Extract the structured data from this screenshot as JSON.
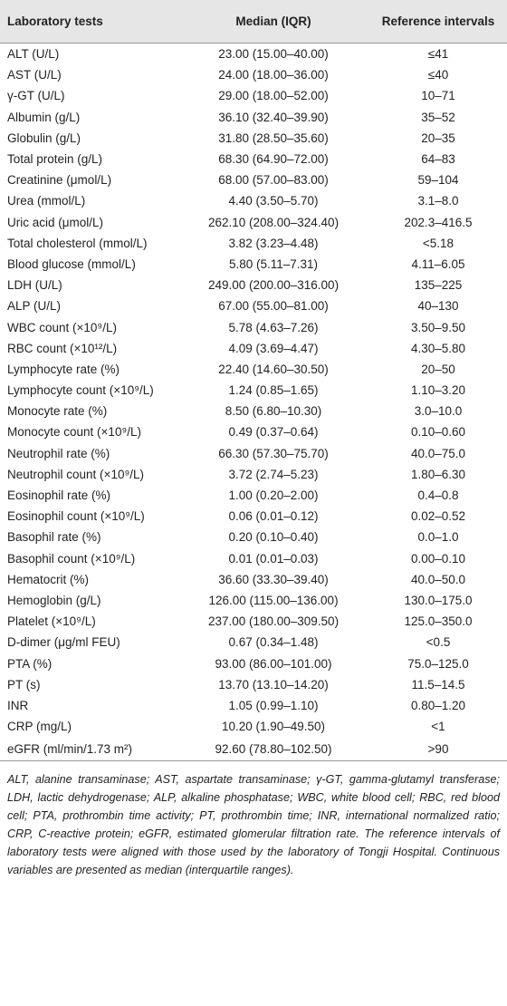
{
  "table": {
    "header": [
      "Laboratory tests",
      "Median (IQR)",
      "Reference intervals"
    ],
    "rows": [
      [
        "ALT (U/L)",
        "23.00 (15.00–40.00)",
        "≤41"
      ],
      [
        "AST (U/L)",
        "24.00 (18.00–36.00)",
        "≤40"
      ],
      [
        "γ-GT (U/L)",
        "29.00 (18.00–52.00)",
        "10–71"
      ],
      [
        "Albumin (g/L)",
        "36.10 (32.40–39.90)",
        "35–52"
      ],
      [
        "Globulin (g/L)",
        "31.80 (28.50–35.60)",
        "20–35"
      ],
      [
        "Total protein (g/L)",
        "68.30 (64.90–72.00)",
        "64–83"
      ],
      [
        "Creatinine (μmol/L)",
        "68.00 (57.00–83.00)",
        "59–104"
      ],
      [
        "Urea (mmol/L)",
        "4.40 (3.50–5.70)",
        "3.1–8.0"
      ],
      [
        "Uric acid (μmol/L)",
        "262.10 (208.00–324.40)",
        "202.3–416.5"
      ],
      [
        "Total cholesterol (mmol/L)",
        "3.82 (3.23–4.48)",
        "<5.18"
      ],
      [
        "Blood glucose (mmol/L)",
        "5.80 (5.11–7.31)",
        "4.11–6.05"
      ],
      [
        "LDH (U/L)",
        "249.00 (200.00–316.00)",
        "135–225"
      ],
      [
        "ALP (U/L)",
        "67.00 (55.00–81.00)",
        "40–130"
      ],
      [
        "WBC count (×10⁹/L)",
        "5.78 (4.63–7.26)",
        "3.50–9.50"
      ],
      [
        "RBC count (×10¹²/L)",
        "4.09 (3.69–4.47)",
        "4.30–5.80"
      ],
      [
        "Lymphocyte rate (%)",
        "22.40 (14.60–30.50)",
        "20–50"
      ],
      [
        "Lymphocyte count (×10⁹/L)",
        "1.24 (0.85–1.65)",
        "1.10–3.20"
      ],
      [
        "Monocyte rate (%)",
        "8.50 (6.80–10.30)",
        "3.0–10.0"
      ],
      [
        "Monocyte count (×10⁹/L)",
        "0.49 (0.37–0.64)",
        "0.10–0.60"
      ],
      [
        "Neutrophil rate (%)",
        "66.30 (57.30–75.70)",
        "40.0–75.0"
      ],
      [
        "Neutrophil count (×10⁹/L)",
        "3.72 (2.74–5.23)",
        "1.80–6.30"
      ],
      [
        "Eosinophil rate (%)",
        "1.00 (0.20–2.00)",
        "0.4–0.8"
      ],
      [
        "Eosinophil count (×10⁹/L)",
        "0.06 (0.01–0.12)",
        "0.02–0.52"
      ],
      [
        "Basophil rate (%)",
        "0.20 (0.10–0.40)",
        "0.0–1.0"
      ],
      [
        "Basophil count (×10⁹/L)",
        "0.01 (0.01–0.03)",
        "0.00–0.10"
      ],
      [
        "Hematocrit (%)",
        "36.60 (33.30–39.40)",
        "40.0–50.0"
      ],
      [
        "Hemoglobin (g/L)",
        "126.00 (115.00–136.00)",
        "130.0–175.0"
      ],
      [
        "Platelet (×10⁹/L)",
        "237.00 (180.00–309.50)",
        "125.0–350.0"
      ],
      [
        "D-dimer (μg/ml FEU)",
        "0.67 (0.34–1.48)",
        "<0.5"
      ],
      [
        "PTA (%)",
        "93.00 (86.00–101.00)",
        "75.0–125.0"
      ],
      [
        "PT (s)",
        "13.70 (13.10–14.20)",
        "11.5–14.5"
      ],
      [
        "INR",
        "1.05 (0.99–1.10)",
        "0.80–1.20"
      ],
      [
        "CRP (mg/L)",
        "10.20 (1.90–49.50)",
        "<1"
      ],
      [
        "eGFR (ml/min/1.73 m²)",
        "92.60 (78.80–102.50)",
        ">90"
      ]
    ]
  },
  "footnote": "ALT, alanine transaminase; AST, aspartate transaminase; γ-GT, gamma-glutamyl transferase; LDH, lactic dehydrogenase; ALP, alkaline phosphatase; WBC, white blood cell; RBC, red blood cell; PTA, prothrombin time activity; PT, prothrombin time; INR, international normalized ratio; CRP, C-reactive protein; eGFR, estimated glomerular filtration rate. The reference intervals of laboratory tests were aligned with those used by the laboratory of Tongji Hospital. Continuous variables are presented as median (interquartile ranges)."
}
